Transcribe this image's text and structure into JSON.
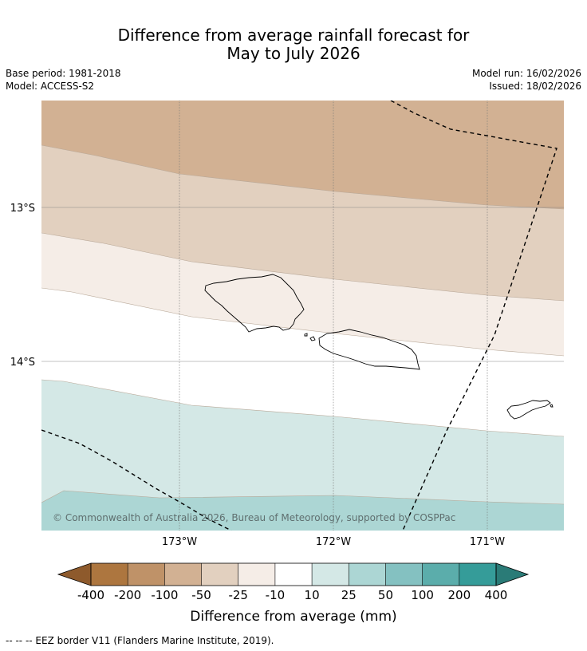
{
  "header": {
    "title_line1": "Difference from average rainfall forecast for",
    "title_line2": "May to July 2026",
    "base_period": "Base period: 1981-2018",
    "model": "Model: ACCESS-S2",
    "model_run": "Model run: 16/02/2026",
    "issued": "Issued: 18/02/2026"
  },
  "map": {
    "lat_labels": [
      "13°S",
      "14°S"
    ],
    "lon_labels": [
      "173°W",
      "172°W",
      "171°W"
    ],
    "copyright": "© Commonwealth of Australia 2026, Bureau of Meteorology, supported by COSPPac",
    "band_colors": {
      "minus_100": "#d2b193",
      "minus_50": "#e2d0bf",
      "minus_25": "#f5ede7",
      "minus_10_10": "#ffffff",
      "plus_10": "#d4e8e6",
      "plus_25": "#acd6d4"
    }
  },
  "colorbar": {
    "ticks": [
      "-400",
      "-200",
      "-100",
      "-50",
      "-25",
      "-10",
      "10",
      "25",
      "50",
      "100",
      "200",
      "400"
    ],
    "colors": [
      "#8e5a2c",
      "#ad763f",
      "#bf9268",
      "#d2b193",
      "#e2d0bf",
      "#f5ede7",
      "#ffffff",
      "#d4e8e6",
      "#acd6d4",
      "#84c1c1",
      "#5badab",
      "#359c99",
      "#2a7b77"
    ],
    "label": "Difference from average (mm)"
  },
  "footnote": "--  --  -- EEZ border V11 (Flanders Marine Institute, 2019)."
}
